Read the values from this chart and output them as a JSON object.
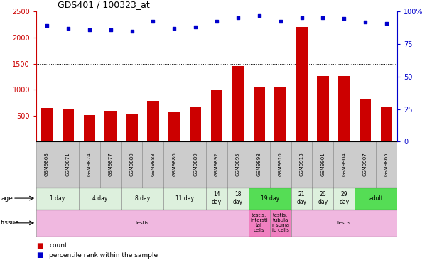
{
  "title": "GDS401 / 100323_at",
  "samples": [
    "GSM9868",
    "GSM9871",
    "GSM9874",
    "GSM9877",
    "GSM9880",
    "GSM9883",
    "GSM9886",
    "GSM9889",
    "GSM9892",
    "GSM9895",
    "GSM9898",
    "GSM9910",
    "GSM9913",
    "GSM9901",
    "GSM9904",
    "GSM9907",
    "GSM9865"
  ],
  "counts": [
    650,
    620,
    510,
    590,
    545,
    790,
    560,
    665,
    1000,
    1460,
    1050,
    1060,
    2200,
    1260,
    1260,
    820,
    670
  ],
  "percentiles": [
    2230,
    2175,
    2155,
    2155,
    2130,
    2310,
    2175,
    2210,
    2310,
    2390,
    2420,
    2310,
    2390,
    2390,
    2370,
    2300,
    2270
  ],
  "ylim": [
    0,
    2500
  ],
  "yticks_left": [
    500,
    1000,
    1500,
    2000,
    2500
  ],
  "yticks_right_vals": [
    0,
    625,
    1250,
    1875,
    2500
  ],
  "yticks_right_labels": [
    "0",
    "25",
    "50",
    "75",
    "100%"
  ],
  "bar_color": "#cc0000",
  "dot_color": "#0000cc",
  "bg_color": "#ffffff",
  "grid_lines": [
    1000,
    1500,
    2000
  ],
  "age_groups": [
    {
      "label": "1 day",
      "start": 0,
      "end": 2,
      "color": "#ddf0dd"
    },
    {
      "label": "4 day",
      "start": 2,
      "end": 4,
      "color": "#ddf0dd"
    },
    {
      "label": "8 day",
      "start": 4,
      "end": 6,
      "color": "#ddf0dd"
    },
    {
      "label": "11 day",
      "start": 6,
      "end": 8,
      "color": "#ddf0dd"
    },
    {
      "label": "14\nday",
      "start": 8,
      "end": 9,
      "color": "#ddf0dd"
    },
    {
      "label": "18\nday",
      "start": 9,
      "end": 10,
      "color": "#ddf0dd"
    },
    {
      "label": "19 day",
      "start": 10,
      "end": 12,
      "color": "#55dd55"
    },
    {
      "label": "21\nday",
      "start": 12,
      "end": 13,
      "color": "#ddf0dd"
    },
    {
      "label": "26\nday",
      "start": 13,
      "end": 14,
      "color": "#ddf0dd"
    },
    {
      "label": "29\nday",
      "start": 14,
      "end": 15,
      "color": "#ddf0dd"
    },
    {
      "label": "adult",
      "start": 15,
      "end": 17,
      "color": "#55dd55"
    }
  ],
  "tissue_groups": [
    {
      "label": "testis",
      "start": 0,
      "end": 10,
      "color": "#f0b8e0"
    },
    {
      "label": "testis,\nintersti\ntal\ncells",
      "start": 10,
      "end": 11,
      "color": "#f080c0"
    },
    {
      "label": "testis,\ntubula\nr soma\nic cells",
      "start": 11,
      "end": 12,
      "color": "#f080c0"
    },
    {
      "label": "testis",
      "start": 12,
      "end": 17,
      "color": "#f0b8e0"
    }
  ],
  "sample_bg": "#cccccc",
  "legend_count_color": "#cc0000",
  "legend_pct_color": "#0000cc"
}
